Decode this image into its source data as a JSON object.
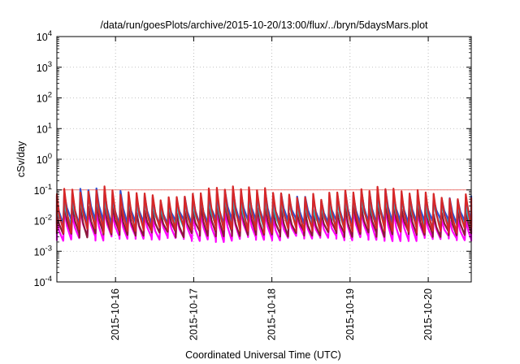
{
  "chart_data": {
    "type": "line",
    "title": "/data/run/goesPlots/archive/2015-10-20/13:00/flux/../bryn/5daysMars.plot",
    "xlabel": "Coordinated Universal Time (UTC)",
    "ylabel": "cSv/day",
    "yscale": "log",
    "ylim_exp": [
      -4,
      4
    ],
    "y_tick_labels": [
      {
        "exp": -4,
        "base": "10",
        "sup": "-4"
      },
      {
        "exp": -3,
        "base": "10",
        "sup": "-3"
      },
      {
        "exp": -2,
        "base": "10",
        "sup": "-2"
      },
      {
        "exp": -1,
        "base": "10",
        "sup": "-1"
      },
      {
        "exp": 0,
        "base": "10",
        "sup": "0"
      },
      {
        "exp": 1,
        "base": "10",
        "sup": "1"
      },
      {
        "exp": 2,
        "base": "10",
        "sup": "2"
      },
      {
        "exp": 3,
        "base": "10",
        "sup": "3"
      },
      {
        "exp": 4,
        "base": "10",
        "sup": "4"
      }
    ],
    "xlim_days": [
      0,
      5.3
    ],
    "x_tick_labels": [
      {
        "label": "2015-10-16",
        "day": 0.75
      },
      {
        "label": "2015-10-17",
        "day": 1.75
      },
      {
        "label": "2015-10-18",
        "day": 2.75
      },
      {
        "label": "2015-10-19",
        "day": 3.75
      },
      {
        "label": "2015-10-20",
        "day": 4.75
      }
    ],
    "grid": true,
    "reference_line": {
      "value": 0.1,
      "color": "#e8554e"
    },
    "sawtooth_period_days": 0.1027,
    "series": [
      {
        "color": "#d62728",
        "peak": 0.1,
        "trough": 0.005
      },
      {
        "color": "#3050d0",
        "peak": 0.085,
        "trough": 0.009
      },
      {
        "color": "#29b6c6",
        "peak": 0.05,
        "trough": 0.007
      },
      {
        "color": "#8b1a3a",
        "peak": 0.03,
        "trough": 0.0035
      },
      {
        "color": "#ff00ff",
        "peak": 0.02,
        "trough": 0.0025
      }
    ],
    "colors": {
      "grid": "#b0b0b0",
      "axis": "#000000"
    }
  }
}
